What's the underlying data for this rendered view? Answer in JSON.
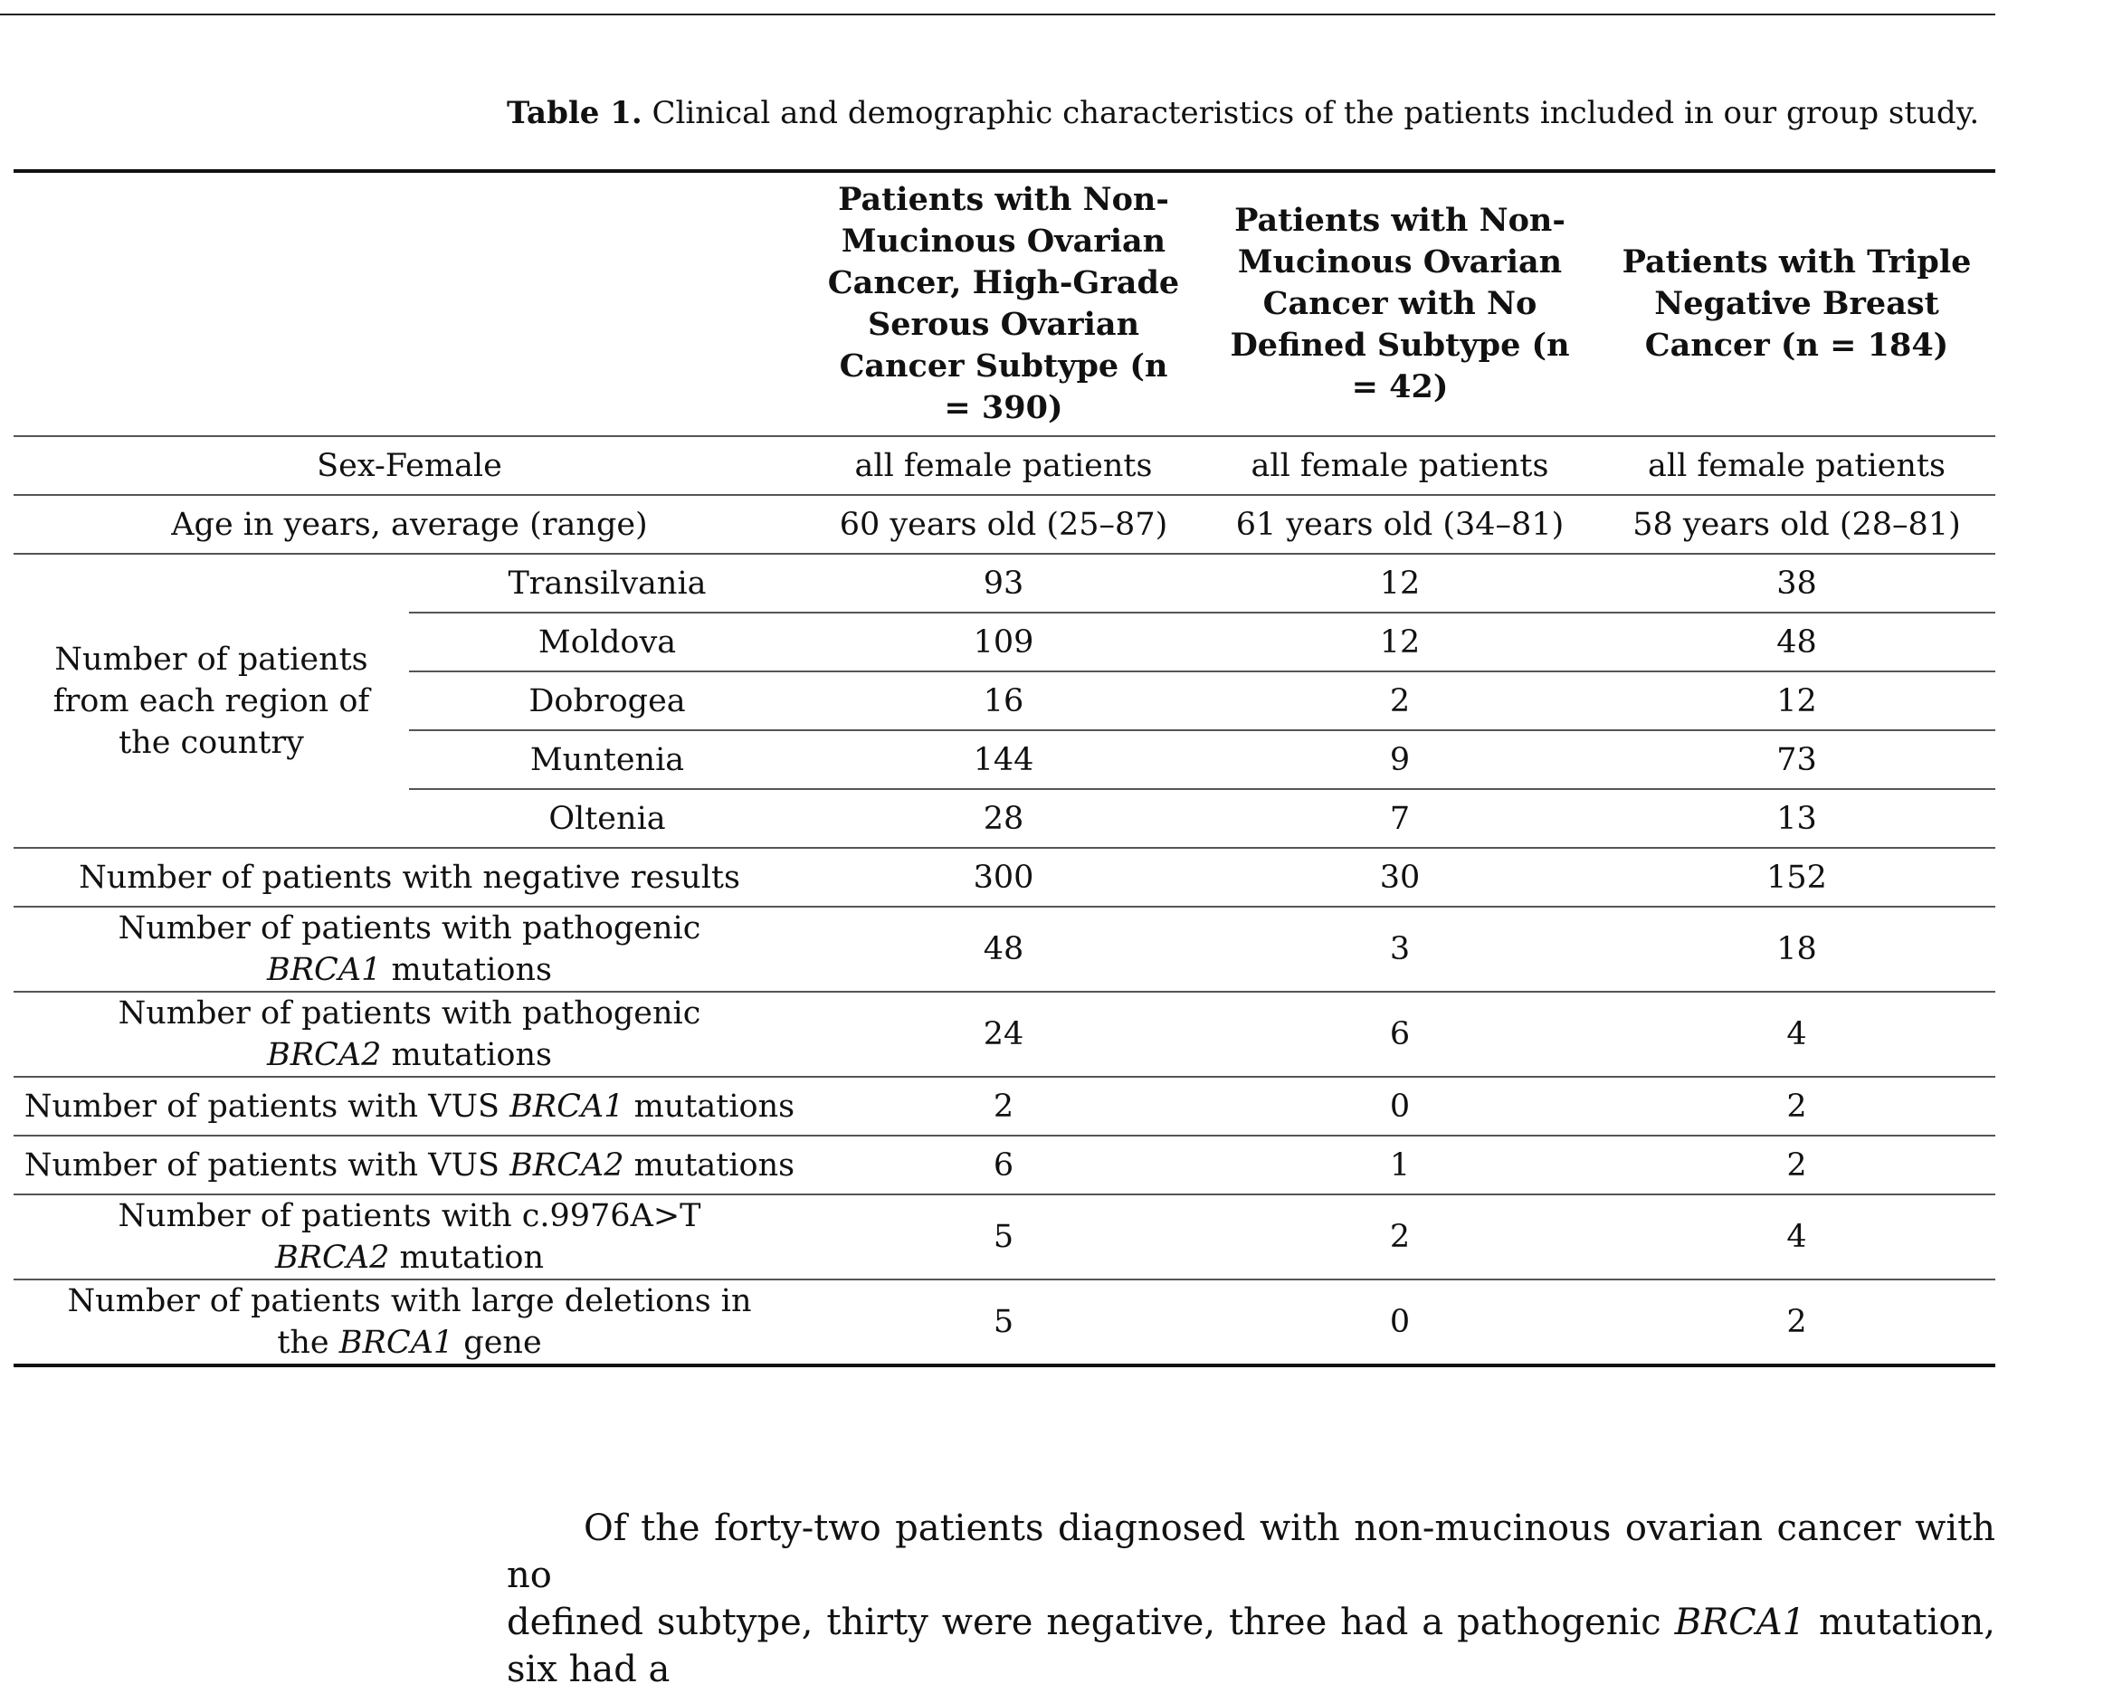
{
  "caption": {
    "label": "Table 1.",
    "text": "Clinical and demographic characteristics of the patients included in our group study."
  },
  "columns": [
    "Patients with Non-Mucinous Ovarian Cancer, High-Grade Serous Ovarian Cancer Subtype (n = 390)",
    "Patients with Non-Mucinous Ovarian Cancer with No Defined Subtype (n = 42)",
    "Patients with Triple Negative Breast Cancer (n = 184)"
  ],
  "sex": {
    "label": "Sex-Female",
    "values": [
      "all female patients",
      "all female patients",
      "all female patients"
    ]
  },
  "age": {
    "label": "Age in years, average (range)",
    "values": [
      "60 years old (25–87)",
      "61 years old (34–81)",
      "58 years old (28–81)"
    ]
  },
  "regions": {
    "group_label": "Number of patients from each region of the country",
    "rows": [
      {
        "name": "Transilvania",
        "values": [
          "93",
          "12",
          "38"
        ]
      },
      {
        "name": "Moldova",
        "values": [
          "109",
          "12",
          "48"
        ]
      },
      {
        "name": "Dobrogea",
        "values": [
          "16",
          "2",
          "12"
        ]
      },
      {
        "name": "Muntenia",
        "values": [
          "144",
          "9",
          "73"
        ]
      },
      {
        "name": "Oltenia",
        "values": [
          "28",
          "7",
          "13"
        ]
      }
    ]
  },
  "negative": {
    "label": "Number of patients with negative results",
    "values": [
      "300",
      "30",
      "152"
    ]
  },
  "brca1_path": {
    "label_pre": "Number of patients with pathogenic ",
    "gene": "BRCA1",
    "label_post": " mutations",
    "values": [
      "48",
      "3",
      "18"
    ]
  },
  "brca2_path": {
    "label_pre": "Number of patients with pathogenic ",
    "gene": "BRCA2",
    "label_post": " mutations",
    "values": [
      "24",
      "6",
      "4"
    ]
  },
  "vus_brca1": {
    "label_pre": "Number of patients with VUS ",
    "gene": "BRCA1",
    "label_post": " mutations",
    "values": [
      "2",
      "0",
      "2"
    ]
  },
  "vus_brca2": {
    "label_pre": "Number of patients with VUS ",
    "gene": "BRCA2",
    "label_post": " mutations",
    "values": [
      "6",
      "1",
      "2"
    ]
  },
  "c9976": {
    "label_pre": "Number of patients with c.9976A>T ",
    "gene": "BRCA2",
    "label_post": " mutation",
    "values": [
      "5",
      "2",
      "4"
    ]
  },
  "large_del": {
    "label_pre": "Number of patients with large deletions in the ",
    "gene": "BRCA1",
    "label_post": " gene",
    "values": [
      "5",
      "0",
      "2"
    ]
  },
  "paragraph": {
    "line1": "Of the forty-two patients diagnosed with non-mucinous ovarian cancer with no",
    "line2_pre": "defined subtype, thirty were negative, three had a pathogenic ",
    "line2_gene": "BRCA1",
    "line2_post": " mutation, six had a"
  }
}
